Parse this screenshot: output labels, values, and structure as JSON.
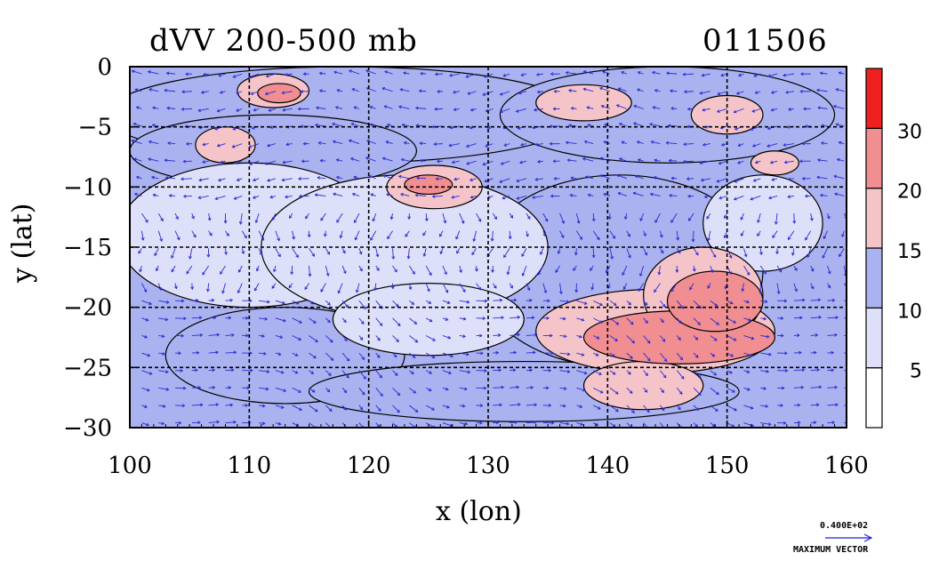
{
  "title_left": "dVV 200-500 mb",
  "title_right": "011506",
  "max_vector": {
    "value_label": "0.400E+02",
    "caption": "MAXIMUM VECTOR"
  },
  "chart_data": {
    "type": "heatmap",
    "xlabel": "x (lon)",
    "ylabel": "y (lat)",
    "xlim": [
      100,
      160
    ],
    "ylim": [
      -30,
      0
    ],
    "x_ticks": [
      100,
      110,
      120,
      130,
      140,
      150,
      160
    ],
    "y_ticks": [
      0,
      -5,
      -10,
      -15,
      -20,
      -25,
      -30
    ],
    "grid": true,
    "legend_position": "right colorbar",
    "colorbar": {
      "levels": [
        5,
        10,
        15,
        20,
        30
      ],
      "colors": [
        "#ffffff",
        "#dde0f8",
        "#aab2ef",
        "#f5c4c8",
        "#f08e92",
        "#ee2020"
      ]
    },
    "vectors": true,
    "features": [
      {
        "level": 10,
        "lon": 118,
        "lat": -4,
        "rx": 20,
        "ry": 4
      },
      {
        "level": 10,
        "lon": 112,
        "lat": -7,
        "rx": 12,
        "ry": 3
      },
      {
        "level": 10,
        "lon": 145,
        "lat": -4,
        "rx": 14,
        "ry": 4
      },
      {
        "level": 10,
        "lon": 141,
        "lat": -17,
        "rx": 12,
        "ry": 8
      },
      {
        "level": 10,
        "lon": 113,
        "lat": -24,
        "rx": 10,
        "ry": 4
      },
      {
        "level": 10,
        "lon": 133,
        "lat": -27,
        "rx": 18,
        "ry": 2.5
      },
      {
        "level": 5,
        "lon": 110,
        "lat": -14,
        "rx": 11,
        "ry": 6
      },
      {
        "level": 5,
        "lon": 123,
        "lat": -15,
        "rx": 12,
        "ry": 6
      },
      {
        "level": 5,
        "lon": 125,
        "lat": -21,
        "rx": 8,
        "ry": 3
      },
      {
        "level": 5,
        "lon": 153,
        "lat": -13,
        "rx": 5,
        "ry": 4
      },
      {
        "level": 15,
        "lon": 112,
        "lat": -2,
        "rx": 3,
        "ry": 1.4
      },
      {
        "level": 15,
        "lon": 108,
        "lat": -6.5,
        "rx": 2.5,
        "ry": 1.5
      },
      {
        "level": 15,
        "lon": 125.5,
        "lat": -10,
        "rx": 4,
        "ry": 1.8
      },
      {
        "level": 15,
        "lon": 138,
        "lat": -3,
        "rx": 4,
        "ry": 1.5
      },
      {
        "level": 15,
        "lon": 150,
        "lat": -4,
        "rx": 3,
        "ry": 1.6
      },
      {
        "level": 15,
        "lon": 154,
        "lat": -8,
        "rx": 2,
        "ry": 1
      },
      {
        "level": 15,
        "lon": 144,
        "lat": -22,
        "rx": 10,
        "ry": 3.5
      },
      {
        "level": 15,
        "lon": 148,
        "lat": -19,
        "rx": 5,
        "ry": 4
      },
      {
        "level": 15,
        "lon": 143,
        "lat": -26.5,
        "rx": 5,
        "ry": 2
      },
      {
        "level": 20,
        "lon": 146,
        "lat": -22.5,
        "rx": 8,
        "ry": 2.2
      },
      {
        "level": 20,
        "lon": 149,
        "lat": -19.5,
        "rx": 4,
        "ry": 2.5
      },
      {
        "level": 20,
        "lon": 112.5,
        "lat": -2.2,
        "rx": 1.8,
        "ry": 0.8
      },
      {
        "level": 20,
        "lon": 125,
        "lat": -9.8,
        "rx": 2,
        "ry": 0.8
      }
    ]
  }
}
